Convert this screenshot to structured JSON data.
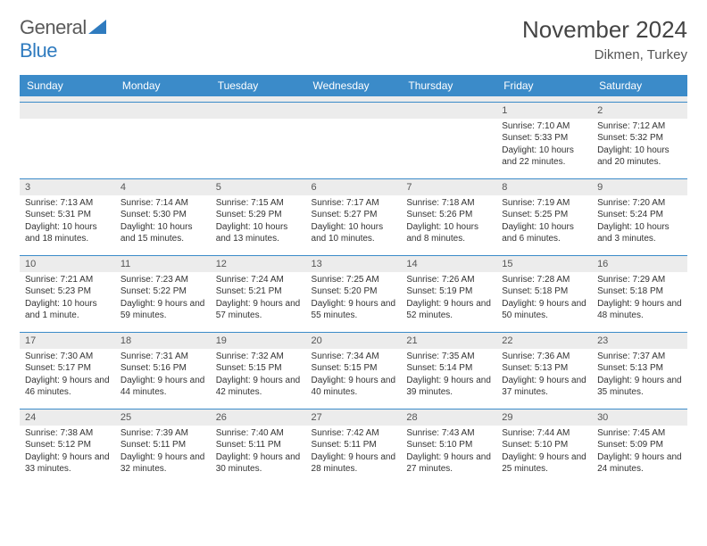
{
  "logo": {
    "text_a": "General",
    "text_b": "Blue"
  },
  "title": "November 2024",
  "location": "Dikmen, Turkey",
  "colors": {
    "header_bg": "#3b8bc9",
    "header_text": "#ffffff",
    "row_divider": "#3b8bc9",
    "daynum_bg": "#ececec",
    "body_text": "#333333",
    "logo_gray": "#5a5a5a",
    "logo_blue": "#2f7bbf"
  },
  "weekdays": [
    "Sunday",
    "Monday",
    "Tuesday",
    "Wednesday",
    "Thursday",
    "Friday",
    "Saturday"
  ],
  "weeks": [
    [
      null,
      null,
      null,
      null,
      null,
      {
        "n": "1",
        "sunrise": "7:10 AM",
        "sunset": "5:33 PM",
        "daylight": "10 hours and 22 minutes."
      },
      {
        "n": "2",
        "sunrise": "7:12 AM",
        "sunset": "5:32 PM",
        "daylight": "10 hours and 20 minutes."
      }
    ],
    [
      {
        "n": "3",
        "sunrise": "7:13 AM",
        "sunset": "5:31 PM",
        "daylight": "10 hours and 18 minutes."
      },
      {
        "n": "4",
        "sunrise": "7:14 AM",
        "sunset": "5:30 PM",
        "daylight": "10 hours and 15 minutes."
      },
      {
        "n": "5",
        "sunrise": "7:15 AM",
        "sunset": "5:29 PM",
        "daylight": "10 hours and 13 minutes."
      },
      {
        "n": "6",
        "sunrise": "7:17 AM",
        "sunset": "5:27 PM",
        "daylight": "10 hours and 10 minutes."
      },
      {
        "n": "7",
        "sunrise": "7:18 AM",
        "sunset": "5:26 PM",
        "daylight": "10 hours and 8 minutes."
      },
      {
        "n": "8",
        "sunrise": "7:19 AM",
        "sunset": "5:25 PM",
        "daylight": "10 hours and 6 minutes."
      },
      {
        "n": "9",
        "sunrise": "7:20 AM",
        "sunset": "5:24 PM",
        "daylight": "10 hours and 3 minutes."
      }
    ],
    [
      {
        "n": "10",
        "sunrise": "7:21 AM",
        "sunset": "5:23 PM",
        "daylight": "10 hours and 1 minute."
      },
      {
        "n": "11",
        "sunrise": "7:23 AM",
        "sunset": "5:22 PM",
        "daylight": "9 hours and 59 minutes."
      },
      {
        "n": "12",
        "sunrise": "7:24 AM",
        "sunset": "5:21 PM",
        "daylight": "9 hours and 57 minutes."
      },
      {
        "n": "13",
        "sunrise": "7:25 AM",
        "sunset": "5:20 PM",
        "daylight": "9 hours and 55 minutes."
      },
      {
        "n": "14",
        "sunrise": "7:26 AM",
        "sunset": "5:19 PM",
        "daylight": "9 hours and 52 minutes."
      },
      {
        "n": "15",
        "sunrise": "7:28 AM",
        "sunset": "5:18 PM",
        "daylight": "9 hours and 50 minutes."
      },
      {
        "n": "16",
        "sunrise": "7:29 AM",
        "sunset": "5:18 PM",
        "daylight": "9 hours and 48 minutes."
      }
    ],
    [
      {
        "n": "17",
        "sunrise": "7:30 AM",
        "sunset": "5:17 PM",
        "daylight": "9 hours and 46 minutes."
      },
      {
        "n": "18",
        "sunrise": "7:31 AM",
        "sunset": "5:16 PM",
        "daylight": "9 hours and 44 minutes."
      },
      {
        "n": "19",
        "sunrise": "7:32 AM",
        "sunset": "5:15 PM",
        "daylight": "9 hours and 42 minutes."
      },
      {
        "n": "20",
        "sunrise": "7:34 AM",
        "sunset": "5:15 PM",
        "daylight": "9 hours and 40 minutes."
      },
      {
        "n": "21",
        "sunrise": "7:35 AM",
        "sunset": "5:14 PM",
        "daylight": "9 hours and 39 minutes."
      },
      {
        "n": "22",
        "sunrise": "7:36 AM",
        "sunset": "5:13 PM",
        "daylight": "9 hours and 37 minutes."
      },
      {
        "n": "23",
        "sunrise": "7:37 AM",
        "sunset": "5:13 PM",
        "daylight": "9 hours and 35 minutes."
      }
    ],
    [
      {
        "n": "24",
        "sunrise": "7:38 AM",
        "sunset": "5:12 PM",
        "daylight": "9 hours and 33 minutes."
      },
      {
        "n": "25",
        "sunrise": "7:39 AM",
        "sunset": "5:11 PM",
        "daylight": "9 hours and 32 minutes."
      },
      {
        "n": "26",
        "sunrise": "7:40 AM",
        "sunset": "5:11 PM",
        "daylight": "9 hours and 30 minutes."
      },
      {
        "n": "27",
        "sunrise": "7:42 AM",
        "sunset": "5:11 PM",
        "daylight": "9 hours and 28 minutes."
      },
      {
        "n": "28",
        "sunrise": "7:43 AM",
        "sunset": "5:10 PM",
        "daylight": "9 hours and 27 minutes."
      },
      {
        "n": "29",
        "sunrise": "7:44 AM",
        "sunset": "5:10 PM",
        "daylight": "9 hours and 25 minutes."
      },
      {
        "n": "30",
        "sunrise": "7:45 AM",
        "sunset": "5:09 PM",
        "daylight": "9 hours and 24 minutes."
      }
    ]
  ],
  "labels": {
    "sunrise": "Sunrise:",
    "sunset": "Sunset:",
    "daylight": "Daylight:"
  }
}
